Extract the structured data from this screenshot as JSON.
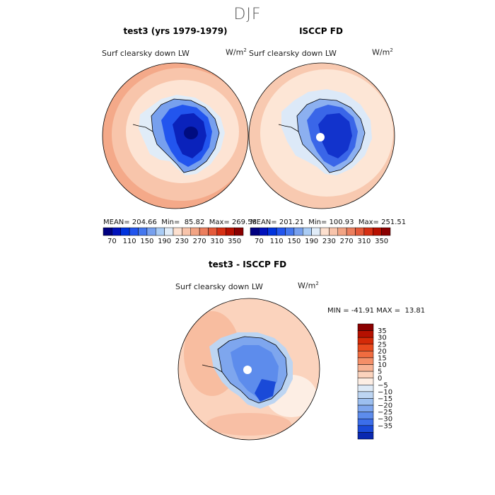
{
  "season": "DJF",
  "panels": [
    {
      "title": "test3 (yrs 1979-1979)",
      "variable": "Surf clearsky down LW",
      "units": "W/m",
      "units_sup": "2",
      "stats": {
        "mean_label": "MEAN=",
        "mean": "204.66",
        "min_label": "Min=",
        "min": "85.82",
        "max_label": "Max=",
        "max": "269.58"
      }
    },
    {
      "title": "ISCCP FD",
      "variable": "Surf clearsky down LW",
      "units": "W/m",
      "units_sup": "2",
      "stats": {
        "mean_label": "MEAN=",
        "mean": "201.21",
        "min_label": "Min=",
        "min": "100.93",
        "max_label": "Max=",
        "max": "251.51"
      }
    },
    {
      "title": "test3 - ISCCP FD",
      "variable": "Surf clearsky down LW",
      "units": "W/m",
      "units_sup": "2",
      "stats": {
        "min_label": "MIN =",
        "min": "-41.91",
        "max_label": "MAX =",
        "max": "13.81"
      }
    }
  ],
  "chart_data": [
    {
      "type": "heatmap",
      "title": "test3 (yrs 1979-1979)",
      "variable": "Surf clearsky down LW",
      "units": "W/m2",
      "projection": "south-polar-stereographic",
      "colorbar": {
        "orientation": "horizontal",
        "levels": [
          70,
          110,
          150,
          190,
          230,
          270,
          310,
          350
        ],
        "tick_labels": [
          "70",
          "110",
          "150",
          "190",
          "230",
          "270",
          "310",
          "350"
        ],
        "colors": [
          "#000080",
          "#0011bb",
          "#0033dd",
          "#2255ee",
          "#4477ee",
          "#77a0ee",
          "#aaccf4",
          "#e0ecf8",
          "#fde0cf",
          "#f8c4ab",
          "#f2a484",
          "#ec7f5e",
          "#e45a3a",
          "#d63014",
          "#b81000",
          "#8a0000"
        ]
      },
      "stats": {
        "mean": 204.66,
        "min": 85.82,
        "max": 269.58
      }
    },
    {
      "type": "heatmap",
      "title": "ISCCP FD",
      "variable": "Surf clearsky down LW",
      "units": "W/m2",
      "projection": "south-polar-stereographic",
      "colorbar": {
        "orientation": "horizontal",
        "levels": [
          70,
          110,
          150,
          190,
          230,
          270,
          310,
          350
        ],
        "tick_labels": [
          "70",
          "110",
          "150",
          "190",
          "230",
          "270",
          "310",
          "350"
        ],
        "colors": [
          "#000080",
          "#0011bb",
          "#0033dd",
          "#2255ee",
          "#4477ee",
          "#77a0ee",
          "#aaccf4",
          "#e0ecf8",
          "#fde0cf",
          "#f8c4ab",
          "#f2a484",
          "#ec7f5e",
          "#e45a3a",
          "#d63014",
          "#b81000",
          "#8a0000"
        ]
      },
      "stats": {
        "mean": 201.21,
        "min": 100.93,
        "max": 251.51
      }
    },
    {
      "type": "heatmap",
      "title": "test3 - ISCCP FD",
      "variable": "Surf clearsky down LW",
      "units": "W/m2",
      "projection": "south-polar-stereographic",
      "colorbar": {
        "orientation": "vertical",
        "levels": [
          35,
          30,
          25,
          20,
          15,
          10,
          5,
          0,
          -5,
          -10,
          -15,
          -20,
          -25,
          -30,
          -35
        ],
        "tick_labels": [
          "35",
          "30",
          "25",
          "20",
          "15",
          "10",
          "5",
          "0",
          "−5",
          "−10",
          "−15",
          "−20",
          "−25",
          "−30",
          "−35"
        ],
        "colors": [
          "#8b0000",
          "#b51000",
          "#d42a08",
          "#e84a1e",
          "#f06c40",
          "#f48f68",
          "#f7b394",
          "#fbd3bd",
          "#fdeee4",
          "#dde9f6",
          "#bdd5f2",
          "#9cbff0",
          "#7ea6ee",
          "#5d8cec",
          "#3c6eea",
          "#1a4ad8",
          "#0a28b0"
        ]
      },
      "stats": {
        "min": -41.91,
        "max": 13.81
      }
    }
  ]
}
